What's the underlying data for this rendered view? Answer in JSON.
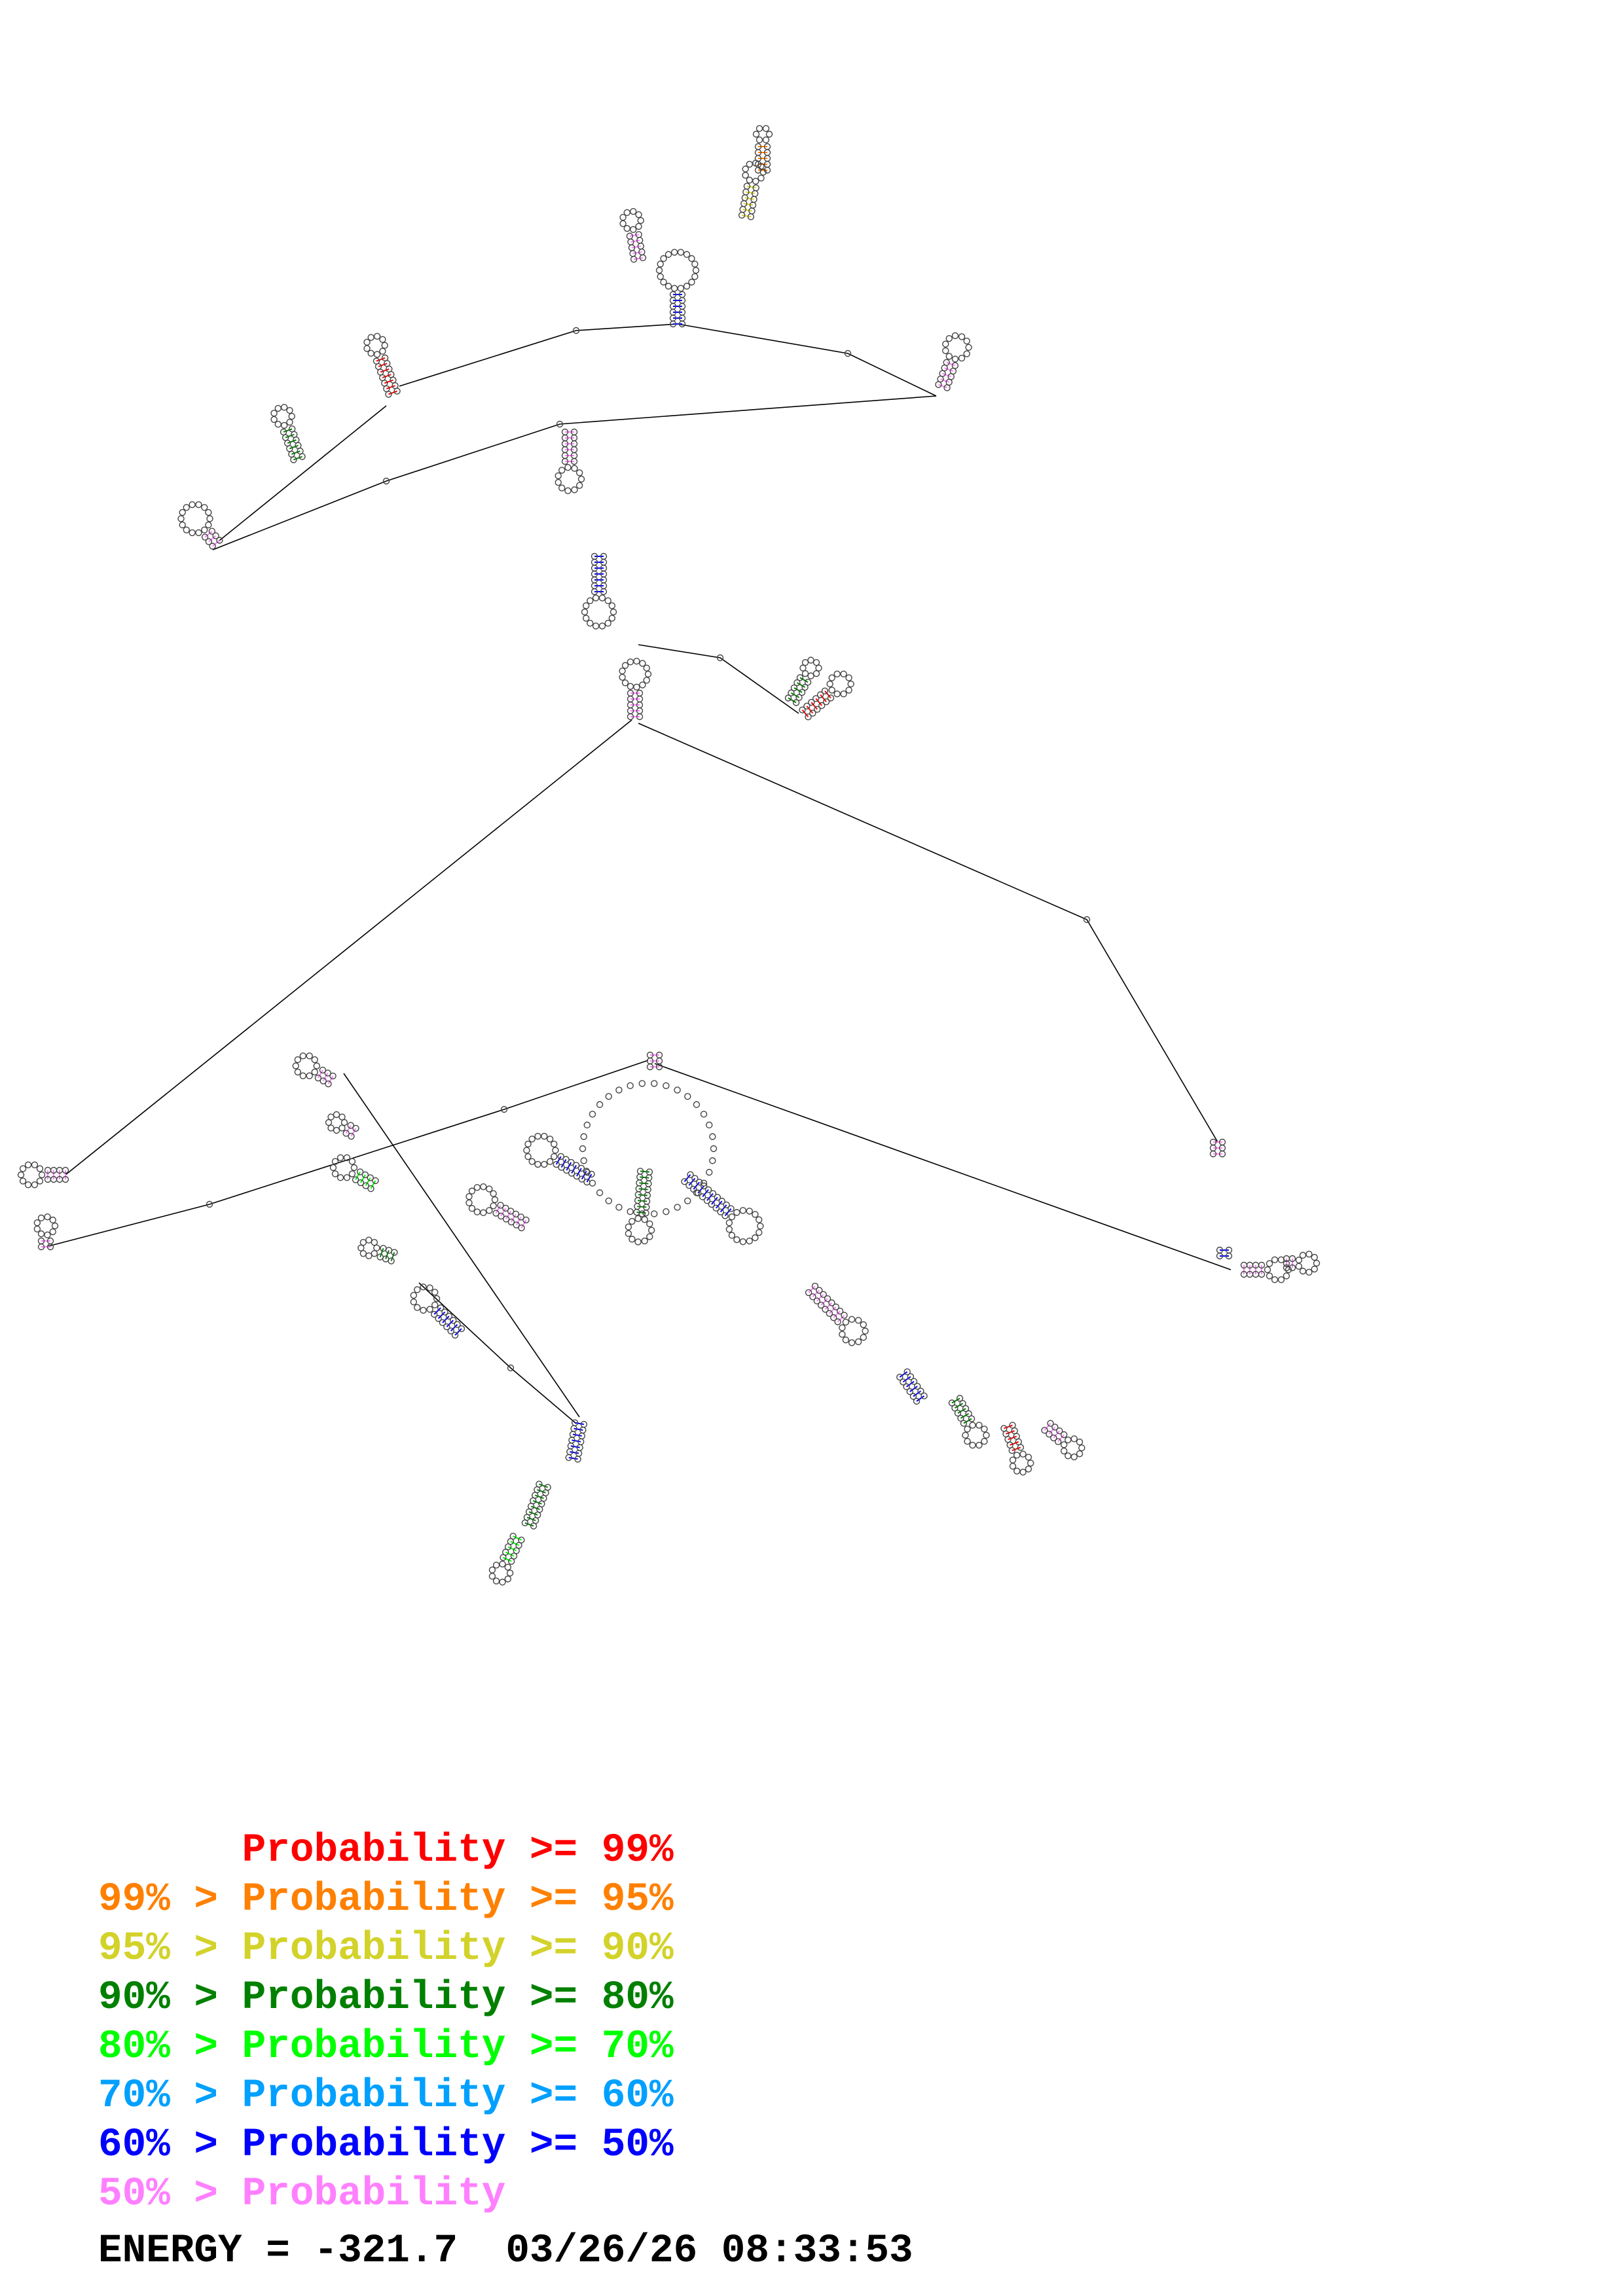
{
  "legend": {
    "rows": [
      {
        "prefix": "       ",
        "label": "Probability >= 99%",
        "color": "#ff0000"
      },
      {
        "prefix": "99% > ",
        "label": "Probability >= 95%",
        "color": "#ff8000"
      },
      {
        "prefix": "95% > ",
        "label": "Probability >= 90%",
        "color": "#d2d22a"
      },
      {
        "prefix": "90% > ",
        "label": "Probability >= 80%",
        "color": "#008000"
      },
      {
        "prefix": "80% > ",
        "label": "Probability >= 70%",
        "color": "#00ff00"
      },
      {
        "prefix": "70% > ",
        "label": "Probability >= 60%",
        "color": "#00a0ff"
      },
      {
        "prefix": "60% > ",
        "label": "Probability >= 50%",
        "color": "#0000ff"
      },
      {
        "prefix": "50% > ",
        "label": "Probability",
        "color": "#ff80ff"
      }
    ]
  },
  "footer": {
    "energy_label": "ENERGY = ",
    "energy_value": "-321.7",
    "timestamp": "03/26/26 08:33:53"
  },
  "structure": {
    "line_color": "#000000",
    "base_outline_color": "#333333"
  }
}
